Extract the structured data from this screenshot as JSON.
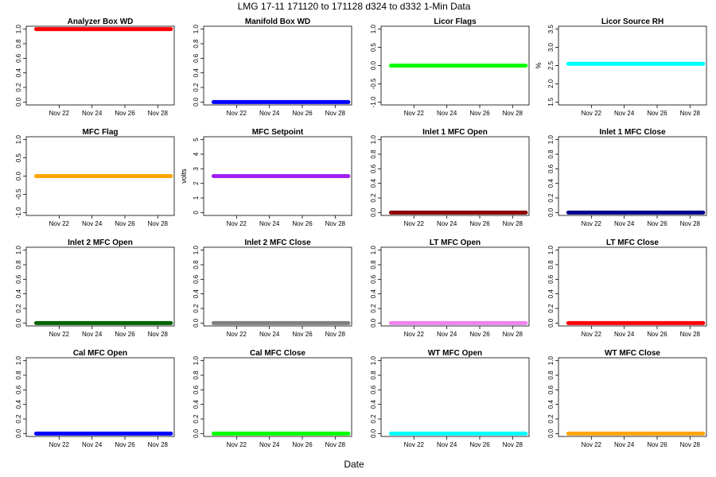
{
  "figure": {
    "title": "LMG   17-11    171120 to 171128    d324 to d332   1-Min Data",
    "xlabel": "Date"
  },
  "chart_data": [
    {
      "type": "line",
      "title": "Analyzer Box WD",
      "ylabel": "",
      "color": "#ff0000",
      "ylim": [
        0.0,
        1.0
      ],
      "yticks": [
        "0.0",
        "0.2",
        "0.4",
        "0.6",
        "0.8",
        "1.0"
      ],
      "xticks": [
        "Nov 22",
        "Nov 24",
        "Nov 26",
        "Nov 28"
      ],
      "x": [
        "Nov 20",
        "Nov 29"
      ],
      "series": [
        {
          "values": [
            1.0,
            1.0
          ]
        }
      ]
    },
    {
      "type": "line",
      "title": "Manifold Box WD",
      "ylabel": "",
      "color": "#0000ff",
      "ylim": [
        0.0,
        1.0
      ],
      "yticks": [
        "0.0",
        "0.2",
        "0.4",
        "0.6",
        "0.8",
        "1.0"
      ],
      "xticks": [
        "Nov 22",
        "Nov 24",
        "Nov 26",
        "Nov 28"
      ],
      "x": [
        "Nov 20",
        "Nov 29"
      ],
      "series": [
        {
          "values": [
            0.0,
            0.0
          ]
        }
      ]
    },
    {
      "type": "line",
      "title": "Licor Flags",
      "ylabel": "",
      "color": "#00ff00",
      "ylim": [
        -1.0,
        1.0
      ],
      "yticks": [
        "-1.0",
        "-0.5",
        "0.0",
        "0.5",
        "1.0"
      ],
      "xticks": [
        "Nov 22",
        "Nov 24",
        "Nov 26",
        "Nov 28"
      ],
      "x": [
        "Nov 20",
        "Nov 29"
      ],
      "series": [
        {
          "values": [
            0.0,
            0.0
          ]
        }
      ]
    },
    {
      "type": "line",
      "title": "Licor Source RH",
      "ylabel": "%",
      "color": "#00ffff",
      "ylim": [
        1.5,
        3.5
      ],
      "yticks": [
        "1.5",
        "2.0",
        "2.5",
        "3.0",
        "3.5"
      ],
      "xticks": [
        "Nov 22",
        "Nov 24",
        "Nov 26",
        "Nov 28"
      ],
      "x": [
        "Nov 20",
        "Nov 29"
      ],
      "series": [
        {
          "values": [
            2.55,
            2.55
          ]
        }
      ]
    },
    {
      "type": "line",
      "title": "MFC Flag",
      "ylabel": "",
      "color": "#ffa500",
      "ylim": [
        -1.0,
        1.0
      ],
      "yticks": [
        "-1.0",
        "-0.5",
        "0.0",
        "0.5",
        "1.0"
      ],
      "xticks": [
        "Nov 22",
        "Nov 24",
        "Nov 26",
        "Nov 28"
      ],
      "x": [
        "Nov 20",
        "Nov 29"
      ],
      "series": [
        {
          "values": [
            0.0,
            0.0
          ]
        }
      ]
    },
    {
      "type": "line",
      "title": "MFC Setpoint",
      "ylabel": "volts",
      "color": "#a020f0",
      "ylim": [
        0,
        5
      ],
      "yticks": [
        "0",
        "1",
        "2",
        "3",
        "4",
        "5"
      ],
      "xticks": [
        "Nov 22",
        "Nov 24",
        "Nov 26",
        "Nov 28"
      ],
      "x": [
        "Nov 20",
        "Nov 29"
      ],
      "series": [
        {
          "values": [
            2.5,
            2.5
          ]
        }
      ]
    },
    {
      "type": "line",
      "title": "Inlet 1 MFC Open",
      "ylabel": "",
      "color": "#8b0000",
      "ylim": [
        0.0,
        1.0
      ],
      "yticks": [
        "0.0",
        "0.2",
        "0.4",
        "0.6",
        "0.8",
        "1.0"
      ],
      "xticks": [
        "Nov 22",
        "Nov 24",
        "Nov 26",
        "Nov 28"
      ],
      "x": [
        "Nov 20",
        "Nov 29"
      ],
      "series": [
        {
          "values": [
            0.0,
            0.0
          ]
        }
      ]
    },
    {
      "type": "line",
      "title": "Inlet 1 MFC Close",
      "ylabel": "",
      "color": "#00008b",
      "ylim": [
        0.0,
        1.0
      ],
      "yticks": [
        "0.0",
        "0.2",
        "0.4",
        "0.6",
        "0.8",
        "1.0"
      ],
      "xticks": [
        "Nov 22",
        "Nov 24",
        "Nov 26",
        "Nov 28"
      ],
      "x": [
        "Nov 20",
        "Nov 29"
      ],
      "series": [
        {
          "values": [
            0.0,
            0.0
          ]
        }
      ]
    },
    {
      "type": "line",
      "title": "Inlet 2 MFC Open",
      "ylabel": "",
      "color": "#006400",
      "ylim": [
        0.0,
        1.0
      ],
      "yticks": [
        "0.0",
        "0.2",
        "0.4",
        "0.6",
        "0.8",
        "1.0"
      ],
      "xticks": [
        "Nov 22",
        "Nov 24",
        "Nov 26",
        "Nov 28"
      ],
      "x": [
        "Nov 20",
        "Nov 29"
      ],
      "series": [
        {
          "values": [
            0.0,
            0.0
          ]
        }
      ]
    },
    {
      "type": "line",
      "title": "Inlet 2 MFC Close",
      "ylabel": "",
      "color": "#808080",
      "ylim": [
        0.0,
        1.0
      ],
      "yticks": [
        "0.0",
        "0.2",
        "0.4",
        "0.6",
        "0.8",
        "1.0"
      ],
      "xticks": [
        "Nov 22",
        "Nov 24",
        "Nov 26",
        "Nov 28"
      ],
      "x": [
        "Nov 20",
        "Nov 29"
      ],
      "series": [
        {
          "values": [
            0.0,
            0.0
          ]
        }
      ]
    },
    {
      "type": "line",
      "title": "LT MFC Open",
      "ylabel": "",
      "color": "#ee82ee",
      "ylim": [
        0.0,
        1.0
      ],
      "yticks": [
        "0.0",
        "0.2",
        "0.4",
        "0.6",
        "0.8",
        "1.0"
      ],
      "xticks": [
        "Nov 22",
        "Nov 24",
        "Nov 26",
        "Nov 28"
      ],
      "x": [
        "Nov 20",
        "Nov 29"
      ],
      "series": [
        {
          "values": [
            0.0,
            0.0
          ]
        }
      ]
    },
    {
      "type": "line",
      "title": "LT MFC Close",
      "ylabel": "",
      "color": "#ff0000",
      "ylim": [
        0.0,
        1.0
      ],
      "yticks": [
        "0.0",
        "0.2",
        "0.4",
        "0.6",
        "0.8",
        "1.0"
      ],
      "xticks": [
        "Nov 22",
        "Nov 24",
        "Nov 26",
        "Nov 28"
      ],
      "x": [
        "Nov 20",
        "Nov 29"
      ],
      "series": [
        {
          "values": [
            0.0,
            0.0
          ]
        }
      ]
    },
    {
      "type": "line",
      "title": "Cal MFC Open",
      "ylabel": "",
      "color": "#0000ff",
      "ylim": [
        0.0,
        1.0
      ],
      "yticks": [
        "0.0",
        "0.2",
        "0.4",
        "0.6",
        "0.8",
        "1.0"
      ],
      "xticks": [
        "Nov 22",
        "Nov 24",
        "Nov 26",
        "Nov 28"
      ],
      "x": [
        "Nov 20",
        "Nov 29"
      ],
      "series": [
        {
          "values": [
            0.0,
            0.0
          ]
        }
      ]
    },
    {
      "type": "line",
      "title": "Cal MFC Close",
      "ylabel": "",
      "color": "#00ff00",
      "ylim": [
        0.0,
        1.0
      ],
      "yticks": [
        "0.0",
        "0.2",
        "0.4",
        "0.6",
        "0.8",
        "1.0"
      ],
      "xticks": [
        "Nov 22",
        "Nov 24",
        "Nov 26",
        "Nov 28"
      ],
      "x": [
        "Nov 20",
        "Nov 29"
      ],
      "series": [
        {
          "values": [
            0.0,
            0.0
          ]
        }
      ]
    },
    {
      "type": "line",
      "title": "WT MFC Open",
      "ylabel": "",
      "color": "#00ffff",
      "ylim": [
        0.0,
        1.0
      ],
      "yticks": [
        "0.0",
        "0.2",
        "0.4",
        "0.6",
        "0.8",
        "1.0"
      ],
      "xticks": [
        "Nov 22",
        "Nov 24",
        "Nov 26",
        "Nov 28"
      ],
      "x": [
        "Nov 20",
        "Nov 29"
      ],
      "series": [
        {
          "values": [
            0.0,
            0.0
          ]
        }
      ]
    },
    {
      "type": "line",
      "title": "WT MFC Close",
      "ylabel": "",
      "color": "#ffa500",
      "ylim": [
        0.0,
        1.0
      ],
      "yticks": [
        "0.0",
        "0.2",
        "0.4",
        "0.6",
        "0.8",
        "1.0"
      ],
      "xticks": [
        "Nov 22",
        "Nov 24",
        "Nov 26",
        "Nov 28"
      ],
      "x": [
        "Nov 20",
        "Nov 29"
      ],
      "series": [
        {
          "values": [
            0.0,
            0.0
          ]
        }
      ]
    }
  ]
}
